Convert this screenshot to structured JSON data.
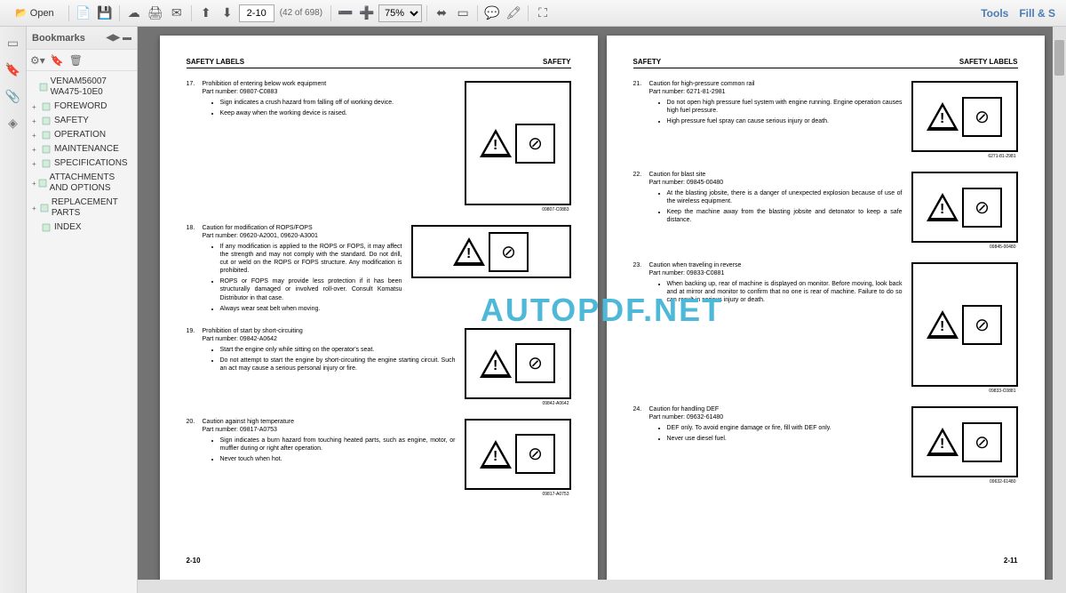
{
  "toolbar": {
    "open": "Open",
    "page_current": "2-10",
    "page_of": "(42 of 698)",
    "zoom": "75%",
    "tools": "Tools",
    "fill": "Fill & S"
  },
  "bookmarks": {
    "title": "Bookmarks",
    "items": [
      {
        "label": "VENAM56007 WA475-10E0",
        "level": 1,
        "exp": ""
      },
      {
        "label": "FOREWORD",
        "level": 2,
        "exp": "+"
      },
      {
        "label": "SAFETY",
        "level": 2,
        "exp": "+"
      },
      {
        "label": "OPERATION",
        "level": 2,
        "exp": "+"
      },
      {
        "label": "MAINTENANCE",
        "level": 2,
        "exp": "+"
      },
      {
        "label": "SPECIFICATIONS",
        "level": 2,
        "exp": "+"
      },
      {
        "label": "ATTACHMENTS AND OPTIONS",
        "level": 2,
        "exp": "+"
      },
      {
        "label": "REPLACEMENT PARTS",
        "level": 2,
        "exp": "+"
      },
      {
        "label": "INDEX",
        "level": 2,
        "exp": ""
      }
    ]
  },
  "watermark": "AUTOPDF.NET",
  "left_page": {
    "head_left": "SAFETY LABELS",
    "head_right": "SAFETY",
    "footer": "2-10",
    "items": [
      {
        "n": "17.",
        "title": "Prohibition of entering below work equipment",
        "part": "Part number: 09807-C0883",
        "bullets": [
          "Sign indicates a crush hazard from falling off of working device.",
          "Keep away when the working device is raised."
        ],
        "cap": "09807-C0883",
        "img": "tall"
      },
      {
        "n": "18.",
        "title": "Caution for modification of ROPS/FOPS",
        "part": "Part number: 09620-A2001, 09620-A3001",
        "bullets": [
          "If any modification is applied to the ROPS or FOPS, it may affect the strength and may not comply with the standard. Do not drill, cut or weld on the ROPS or FOPS structure. Any modification is prohibited.",
          "ROPS or FOPS may provide less protection if it has been structurally damaged or involved roll-over. Consult Komatsu Distributor in that case.",
          "Always wear seat belt when moving."
        ],
        "img": "wide"
      },
      {
        "n": "19.",
        "title": "Prohibition of start by short-circuiting",
        "part": "Part number: 09842-A0642",
        "bullets": [
          "Start the engine only while sitting on the operator's seat.",
          "Do not attempt to start the engine by short-circuiting the engine starting circuit. Such an act may cause a serious personal injury or fire."
        ],
        "cap": "09842-A0642",
        "img": "normal"
      },
      {
        "n": "20.",
        "title": "Caution against high temperature",
        "part": "Part number: 09817-A0753",
        "bullets": [
          "Sign indicates a burn hazard from touching heated parts, such as engine, motor, or muffler during or right after operation.",
          "Never touch when hot."
        ],
        "cap": "09817-A0753",
        "img": "normal"
      }
    ]
  },
  "right_page": {
    "head_left": "SAFETY",
    "head_right": "SAFETY LABELS",
    "footer": "2-11",
    "items": [
      {
        "n": "21.",
        "title": "Caution for high-pressure common rail",
        "part": "Part number: 6271-81-2981",
        "bullets": [
          "Do not open high pressure fuel system with engine running. Engine operation causes high fuel pressure.",
          "High pressure fuel spray can cause serious injury or death."
        ],
        "cap": "6271-81-2981",
        "img": "normal"
      },
      {
        "n": "22.",
        "title": "Caution for blast site",
        "part": "Part number: 09845-00480",
        "bullets": [
          "At the blasting jobsite, there is a danger of unexpected explosion because of use of the wireless equipment.",
          "Keep the machine away from the blasting jobsite and detonator to keep a safe distance."
        ],
        "cap": "09845-00480",
        "img": "normal"
      },
      {
        "n": "23.",
        "title": "Caution when traveling in reverse",
        "part": "Part number: 09833-C0881",
        "bullets": [
          "When backing up, rear of machine is displayed on monitor. Before moving, look back and at mirror and monitor to confirm that no one is rear of machine. Failure to do so can result in serious injury or death."
        ],
        "cap": "09833-C0881",
        "img": "tall"
      },
      {
        "n": "24.",
        "title": "Caution for handling DEF",
        "part": "Part number: 09632-61480",
        "bullets": [
          "DEF only. To avoid engine damage or fire, fill with DEF only.",
          "Never use diesel fuel."
        ],
        "cap": "09632-61480",
        "img": "normal"
      }
    ]
  }
}
